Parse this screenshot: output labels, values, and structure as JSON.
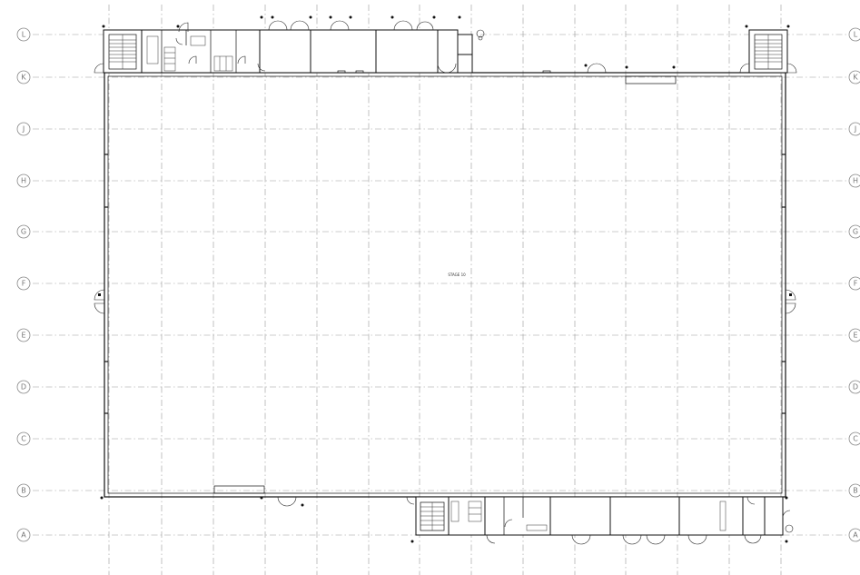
{
  "grid_rows": [
    "L",
    "K",
    "J",
    "H",
    "G",
    "F",
    "E",
    "D",
    "C",
    "B",
    "A"
  ],
  "stage": {
    "label": "STAGE 10"
  },
  "colors": {
    "lines": "#111111",
    "grid": "#9a9a9a",
    "background": "#ffffff"
  }
}
